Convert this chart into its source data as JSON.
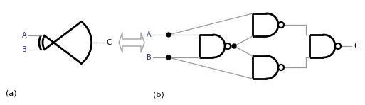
{
  "bg_color": "#ffffff",
  "line_color": "#000000",
  "gray_line_color": "#999999",
  "label_color": "#333377",
  "label_a": "A",
  "label_b": "B",
  "label_c": "C",
  "label_a_label": "(a)",
  "label_b_label": "(b)",
  "lw_thick": 2.0,
  "lw_thin": 0.9,
  "bubble_r": 4.0,
  "dot_r": 3.0,
  "fig_w": 5.13,
  "fig_h": 1.48,
  "dpi": 100
}
